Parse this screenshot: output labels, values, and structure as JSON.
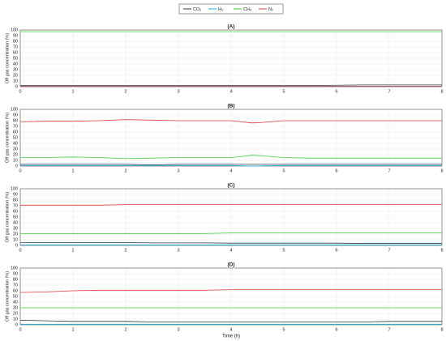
{
  "chart_data": [
    {
      "type": "line",
      "title": "(A)",
      "ylabel": "Off gas concentration (%)",
      "grid": true,
      "x": [
        0,
        0.5,
        1,
        1.5,
        2,
        2.5,
        3,
        3.5,
        4,
        4.5,
        5,
        5.5,
        6,
        6.5,
        7,
        7.5,
        8
      ],
      "xlim": [
        0,
        8
      ],
      "xticks": [
        0,
        1,
        2,
        3,
        4,
        5,
        6,
        7,
        8
      ],
      "ylim": [
        0,
        100
      ],
      "yticks": [
        0,
        10,
        20,
        30,
        40,
        50,
        60,
        70,
        80,
        90,
        100
      ],
      "series": [
        {
          "name": "CO₂",
          "color": "#2f3b3b",
          "values": [
            2,
            2,
            2,
            2,
            2,
            2,
            2,
            2,
            2,
            2,
            2,
            2,
            2.5,
            3,
            3,
            3,
            3
          ]
        },
        {
          "name": "H₂",
          "color": "#1ab0d8",
          "values": [
            0.8,
            0.8,
            0.8,
            0.8,
            0.8,
            0.8,
            0.8,
            0.8,
            0.8,
            0.8,
            0.8,
            0.8,
            0.8,
            0.8,
            0.8,
            0.8,
            0.8
          ]
        },
        {
          "name": "CH₄",
          "color": "#3ccf3c",
          "values": [
            97,
            97,
            97,
            97,
            97,
            97,
            97,
            97,
            97,
            97,
            97,
            97,
            97,
            97,
            97,
            97,
            97
          ]
        },
        {
          "name": "N₂",
          "color": "#e03c3c",
          "values": [
            0.3,
            0.3,
            0.3,
            0.3,
            0.3,
            0.3,
            0.3,
            0.3,
            0.3,
            0.3,
            0.3,
            0.3,
            0.3,
            0.3,
            0.3,
            0.3,
            0.3
          ]
        }
      ]
    },
    {
      "type": "line",
      "title": "(B)",
      "ylabel": "Off gas concentration (%)",
      "grid": true,
      "x": [
        0,
        0.5,
        1,
        1.5,
        2,
        2.5,
        3,
        3.5,
        4,
        4.2,
        4.4,
        4.6,
        5,
        5.5,
        6,
        6.5,
        7,
        7.5,
        8
      ],
      "xlim": [
        0,
        8
      ],
      "xticks": [
        0,
        1,
        2,
        3,
        4,
        5,
        6,
        7,
        8
      ],
      "ylim": [
        0,
        100
      ],
      "yticks": [
        0,
        10,
        20,
        30,
        40,
        50,
        60,
        70,
        80,
        90,
        100
      ],
      "series": [
        {
          "color": "#2f3b3b",
          "values": [
            3,
            3,
            3,
            3,
            3,
            2,
            3,
            3,
            3,
            3,
            3,
            3,
            3,
            3,
            3,
            3,
            3,
            3,
            3
          ]
        },
        {
          "color": "#1ab0d8",
          "values": [
            1,
            1,
            1,
            1,
            1,
            1,
            1,
            1,
            1,
            0.5,
            0,
            0.5,
            1,
            1,
            1,
            1,
            1,
            1,
            1
          ]
        },
        {
          "color": "#3ccf3c",
          "values": [
            15,
            15,
            16,
            15,
            13,
            14,
            15,
            15,
            15,
            17,
            19,
            18,
            15,
            14,
            14,
            14,
            14,
            14,
            14
          ]
        },
        {
          "color": "#e03c3c",
          "values": [
            78,
            79,
            79,
            80,
            82,
            81,
            80,
            80,
            80,
            78,
            76,
            77,
            80,
            80,
            80,
            80,
            80,
            80,
            80
          ]
        }
      ]
    },
    {
      "type": "line",
      "title": "(C)",
      "ylabel": "Off gas concentration (%)",
      "grid": true,
      "x": [
        0,
        0.5,
        1,
        1.5,
        2,
        2.5,
        3,
        3.5,
        4,
        4.5,
        5,
        5.5,
        6,
        6.5,
        7,
        7.5,
        8
      ],
      "xlim": [
        0,
        8
      ],
      "xticks": [
        0,
        1,
        2,
        3,
        4,
        5,
        6,
        7,
        8
      ],
      "ylim": [
        0,
        100
      ],
      "yticks": [
        0,
        10,
        20,
        30,
        40,
        50,
        60,
        70,
        80,
        90,
        100
      ],
      "series": [
        {
          "color": "#2f3b3b",
          "values": [
            5,
            5,
            5,
            5,
            5,
            4.5,
            4.5,
            4.5,
            4,
            4,
            4,
            4,
            4,
            3.5,
            3.5,
            3.5,
            3.5
          ]
        },
        {
          "color": "#1ab0d8",
          "values": [
            1,
            1,
            1,
            1,
            1,
            1,
            1,
            1,
            1,
            1,
            1,
            1,
            1,
            1,
            1,
            1,
            1
          ]
        },
        {
          "color": "#3ccf3c",
          "values": [
            21,
            21,
            21,
            21,
            21,
            21,
            21,
            21,
            22,
            22,
            22,
            22,
            22,
            22,
            22,
            22,
            22
          ]
        },
        {
          "color": "#e03c3c",
          "values": [
            71,
            71,
            71,
            71,
            72,
            72,
            72,
            72,
            72,
            72,
            72,
            72,
            72,
            72,
            72,
            72,
            72
          ]
        }
      ]
    },
    {
      "type": "line",
      "title": "(D)",
      "ylabel": "Off gas concentration (%)",
      "xlabel": "Time (h)",
      "grid": true,
      "x": [
        0,
        0.5,
        1,
        1.5,
        2,
        2.5,
        3,
        3.5,
        4,
        4.5,
        5,
        5.5,
        6,
        6.5,
        7,
        7.5,
        8
      ],
      "xlim": [
        0,
        8
      ],
      "xticks": [
        0,
        1,
        2,
        3,
        4,
        5,
        6,
        7,
        8
      ],
      "ylim": [
        0,
        100
      ],
      "yticks": [
        0,
        10,
        20,
        30,
        40,
        50,
        60,
        70,
        80,
        90,
        100
      ],
      "series": [
        {
          "color": "#2f3b3b",
          "values": [
            8,
            7,
            6,
            6,
            6,
            5,
            5,
            5,
            5,
            5,
            5,
            5,
            5,
            5,
            6,
            6,
            6
          ]
        },
        {
          "color": "#1ab0d8",
          "values": [
            1,
            1,
            1,
            1,
            1,
            1,
            1,
            1,
            1,
            1,
            1,
            1,
            1,
            1,
            1,
            1,
            1
          ]
        },
        {
          "color": "#3ccf3c",
          "values": [
            30,
            30,
            30,
            30,
            30,
            30,
            30,
            30,
            30,
            30,
            30,
            30,
            30,
            30,
            30,
            30,
            30
          ]
        },
        {
          "color": "#e03c3c",
          "values": [
            57,
            58,
            60,
            61,
            61,
            61,
            61,
            61,
            62,
            62,
            62,
            62,
            62,
            62,
            62,
            62,
            62
          ]
        }
      ]
    }
  ]
}
